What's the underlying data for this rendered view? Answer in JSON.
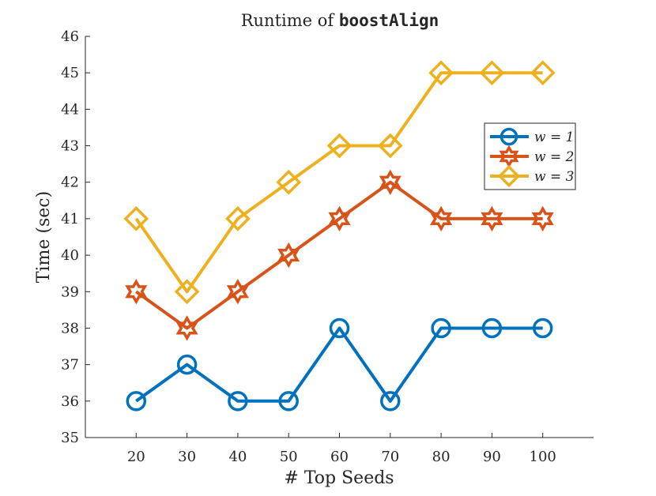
{
  "chart_data": {
    "type": "line",
    "title_prefix": "Runtime of ",
    "title_code": "boostAlign",
    "xlabel": "# Top Seeds",
    "ylabel": "Time (sec)",
    "categories": [
      20,
      30,
      40,
      50,
      60,
      70,
      80,
      90,
      100
    ],
    "xlim": [
      10,
      110
    ],
    "ylim": [
      35,
      46
    ],
    "yticks": [
      35,
      36,
      37,
      38,
      39,
      40,
      41,
      42,
      43,
      44,
      45,
      46
    ],
    "grid": false,
    "legend_position": "right",
    "series": [
      {
        "name": "w = 1",
        "marker": "circle",
        "color": "#0072BD",
        "values": [
          36,
          37,
          36,
          36,
          38,
          36,
          38,
          38,
          38
        ]
      },
      {
        "name": "w = 2",
        "marker": "hexagram",
        "color": "#D95319",
        "values": [
          39,
          38,
          39,
          40,
          41,
          42,
          41,
          41,
          41
        ]
      },
      {
        "name": "w = 3",
        "marker": "diamond",
        "color": "#EDB120",
        "values": [
          41,
          39,
          41,
          42,
          43,
          43,
          45,
          45,
          45
        ]
      }
    ]
  }
}
